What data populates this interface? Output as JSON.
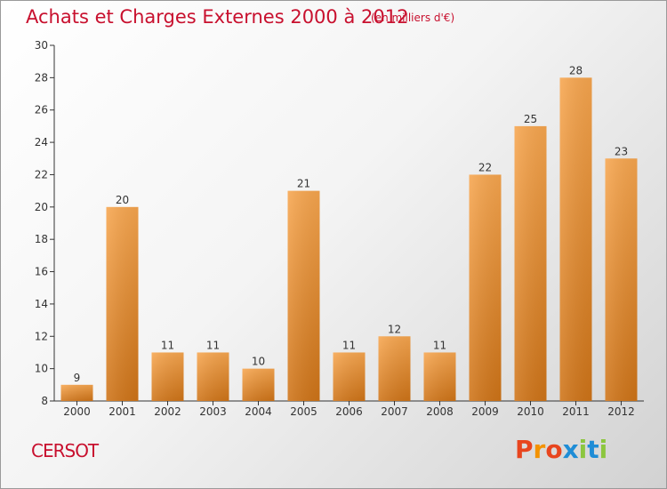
{
  "header": {
    "title": "Achats et Charges Externes 2000 à 2012",
    "subtitle": "(en milliers d'€)"
  },
  "footer": {
    "place": "CERSOT",
    "logo_text": "Proxiti"
  },
  "colors": {
    "title": "#c8102e",
    "bar_light": "#f7a64f",
    "bar_dark": "#cf7418",
    "axis": "#333333",
    "logo_letters": [
      "#e8451e",
      "#f39200",
      "#e8451e",
      "#1f8dd6",
      "#8cc63f",
      "#1f8dd6",
      "#8cc63f"
    ]
  },
  "chart_data": {
    "type": "bar",
    "categories": [
      "2000",
      "2001",
      "2002",
      "2003",
      "2004",
      "2005",
      "2006",
      "2007",
      "2008",
      "2009",
      "2010",
      "2011",
      "2012"
    ],
    "values": [
      9,
      20,
      11,
      11,
      10,
      21,
      11,
      12,
      11,
      22,
      25,
      28,
      23
    ],
    "ylim": [
      8,
      30
    ],
    "yticks": [
      8,
      10,
      12,
      14,
      16,
      18,
      20,
      22,
      24,
      26,
      28,
      30
    ],
    "grid": false,
    "legend": "none"
  }
}
